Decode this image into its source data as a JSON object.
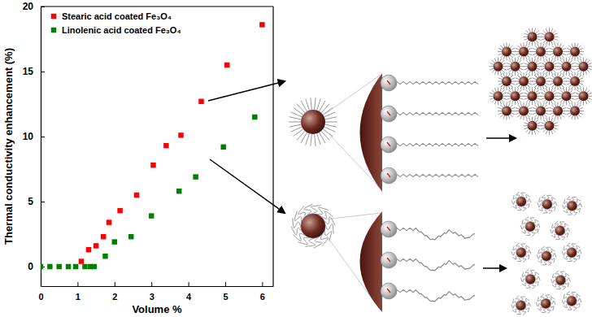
{
  "chart_data": {
    "type": "scatter",
    "xlabel": "Volume %",
    "ylabel": "Thermal conductivity enhancement (%)",
    "xlim": [
      0,
      6.3
    ],
    "ylim": [
      -1.5,
      20
    ],
    "xticks": [
      0,
      1,
      2,
      3,
      4,
      5,
      6
    ],
    "yticks": [
      0,
      5,
      10,
      15,
      20
    ],
    "legend": "upper left",
    "series": [
      {
        "name": "Stearic acid coated Fe₃O₄",
        "color": "#ff0000",
        "marker": "square",
        "x": [
          1.1,
          1.3,
          1.5,
          1.7,
          1.85,
          2.15,
          2.6,
          3.05,
          3.4,
          3.8,
          4.35,
          5.05,
          6.0
        ],
        "values": [
          0.4,
          1.3,
          1.6,
          2.3,
          3.4,
          4.3,
          5.5,
          7.8,
          9.3,
          10.1,
          12.7,
          15.5,
          18.6
        ]
      },
      {
        "name": "Linolenic acid coated Fe₃O₄",
        "color": "#008000",
        "marker": "square",
        "x": [
          0,
          0.25,
          0.5,
          0.75,
          0.95,
          1.2,
          1.35,
          1.45,
          1.75,
          2.0,
          2.45,
          3.0,
          3.75,
          4.2,
          4.95,
          5.8
        ],
        "values": [
          0,
          0,
          0,
          0,
          0,
          0,
          0,
          0,
          0.8,
          1.9,
          2.3,
          3.9,
          5.8,
          6.9,
          9.2,
          11.5
        ]
      }
    ]
  }
}
